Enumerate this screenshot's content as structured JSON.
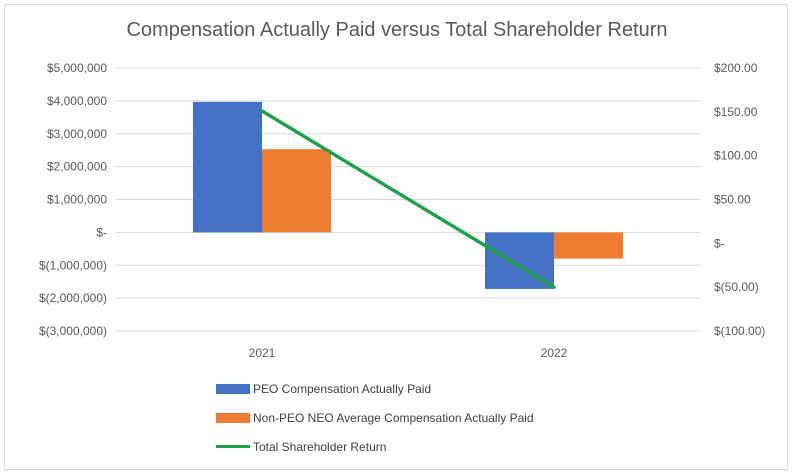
{
  "chart_data": {
    "type": "bar",
    "title": "Compensation Actually Paid versus Total Shareholder Return",
    "categories": [
      "2021",
      "2022"
    ],
    "series": [
      {
        "name": "PEO Compensation Actually Paid",
        "kind": "bar",
        "axis": "left",
        "color": "#4472c4",
        "values": [
          3970000,
          -1720000
        ]
      },
      {
        "name": "Non-PEO NEO Average Compensation Actually Paid",
        "kind": "bar",
        "axis": "left",
        "color": "#ed7d31",
        "values": [
          2530000,
          -800000
        ]
      },
      {
        "name": "Total Shareholder Return",
        "kind": "line",
        "axis": "right",
        "color": "#21a04a",
        "values": [
          151,
          -50
        ]
      }
    ],
    "left_axis": {
      "ylim": [
        -3000000,
        5000000
      ],
      "ticks": [
        5000000,
        4000000,
        3000000,
        2000000,
        1000000,
        0,
        -1000000,
        -2000000,
        -3000000
      ],
      "tick_labels": [
        "$5,000,000",
        "$4,000,000",
        "$3,000,000",
        "$2,000,000",
        "$1,000,000",
        "$-",
        "$(1,000,000)",
        "$(2,000,000)",
        "$(3,000,000)"
      ]
    },
    "right_axis": {
      "ylim": [
        -100,
        200
      ],
      "ticks": [
        200,
        150,
        100,
        50,
        0,
        -50,
        -100
      ],
      "tick_labels": [
        "$200.00",
        "$150.00",
        "$100.00",
        "$50.00",
        "$-",
        "$(50.00)",
        "$(100.00)"
      ]
    },
    "xlabel": "",
    "ylabel": "",
    "grid": true,
    "legend_position": "bottom"
  }
}
